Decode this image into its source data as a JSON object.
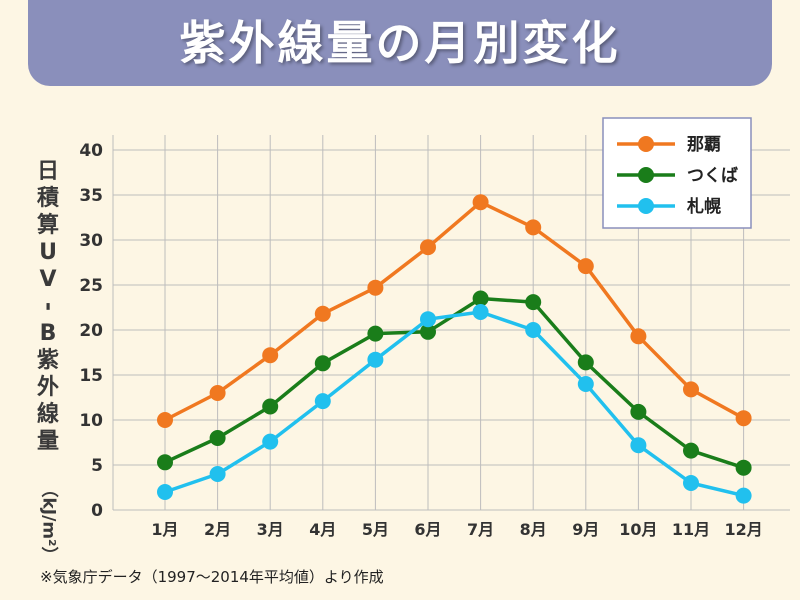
{
  "chart_data": {
    "type": "line",
    "title": "紫外線量の月別変化",
    "ylabel": "日積算UV-B紫外線量（kJ/m²）",
    "ylabel_chars": [
      "日",
      "積",
      "算",
      "U",
      "V",
      "-",
      "B",
      "紫",
      "外",
      "線",
      "量",
      "（kJ/m²）"
    ],
    "xlabel": "",
    "ylim": [
      0,
      40
    ],
    "yticks": [
      0,
      5,
      10,
      15,
      20,
      25,
      30,
      35,
      40
    ],
    "categories": [
      "1月",
      "2月",
      "3月",
      "4月",
      "5月",
      "6月",
      "7月",
      "8月",
      "9月",
      "10月",
      "11月",
      "12月"
    ],
    "grid": true,
    "legend_position": "top-right",
    "series": [
      {
        "name": "那覇",
        "color": "#f07820",
        "values": [
          10.0,
          13.0,
          17.2,
          21.8,
          24.7,
          29.2,
          34.2,
          31.4,
          27.1,
          19.3,
          13.4,
          10.2
        ]
      },
      {
        "name": "つくば",
        "color": "#1a7d1a",
        "values": [
          5.3,
          8.0,
          11.5,
          16.3,
          19.6,
          19.8,
          23.5,
          23.1,
          16.4,
          10.9,
          6.6,
          4.7
        ]
      },
      {
        "name": "札幌",
        "color": "#21c0ee",
        "values": [
          2.0,
          4.0,
          7.6,
          12.1,
          16.7,
          21.2,
          22.0,
          20.0,
          14.0,
          7.2,
          3.0,
          1.6
        ]
      }
    ]
  },
  "footnote": "※気象庁データ（1997〜2014年平均値）より作成"
}
